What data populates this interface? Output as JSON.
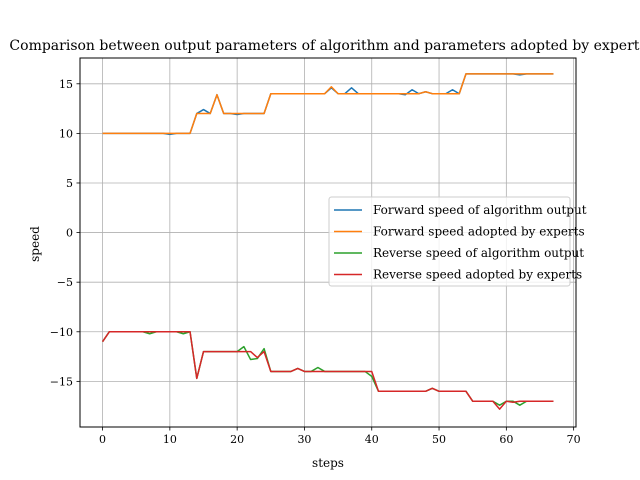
{
  "chart_data": {
    "type": "line",
    "title": "Comparison between output parameters of algorithm and parameters adopted by experts",
    "xlabel": "steps",
    "ylabel": "speed",
    "xlim": [
      -3.35,
      70.35
    ],
    "ylim": [
      -19.6,
      17.6
    ],
    "xticks": [
      0,
      10,
      20,
      30,
      40,
      50,
      60,
      70
    ],
    "yticks": [
      15,
      10,
      5,
      0,
      -5,
      -10,
      -15
    ],
    "ytick_labels": [
      "15",
      "10",
      "5",
      "0",
      "−5",
      "−10",
      "−15"
    ],
    "grid": true,
    "legend_position": "center-right",
    "series": [
      {
        "name": "Forward speed of algorithm output",
        "color": "#1f77b4",
        "values": [
          10,
          10,
          10,
          10,
          10,
          10,
          10,
          10,
          10,
          10,
          9.9,
          10,
          10,
          10,
          12,
          12.4,
          12,
          13.9,
          12,
          12,
          11.9,
          12,
          12,
          12,
          12,
          14,
          14,
          14,
          14,
          14,
          14,
          14,
          14,
          14,
          14.6,
          14,
          14,
          14.6,
          14,
          14,
          14,
          14,
          14,
          14,
          14,
          13.9,
          14.4,
          14,
          14.2,
          14,
          14,
          14,
          14.4,
          14,
          16,
          16,
          16,
          16,
          16,
          16,
          16,
          16,
          15.9,
          16,
          16,
          16,
          16,
          16
        ]
      },
      {
        "name": "Forward speed adopted by experts",
        "color": "#ff7f0e",
        "values": [
          10,
          10,
          10,
          10,
          10,
          10,
          10,
          10,
          10,
          10,
          10,
          10,
          10,
          10,
          12,
          12,
          12,
          13.9,
          12,
          12,
          12,
          12,
          12,
          12,
          12,
          14,
          14,
          14,
          14,
          14,
          14,
          14,
          14,
          14,
          14.7,
          14,
          14,
          14,
          14,
          14,
          14,
          14,
          14,
          14,
          14,
          14,
          14,
          14,
          14.2,
          14,
          14,
          14,
          14,
          14,
          16,
          16,
          16,
          16,
          16,
          16,
          16,
          16,
          16,
          16,
          16,
          16,
          16,
          16
        ]
      },
      {
        "name": "Reverse speed of algorithm output",
        "color": "#2ca02c",
        "values": [
          -11,
          -10,
          -10,
          -10,
          -10,
          -10,
          -10,
          -10.2,
          -10,
          -10,
          -10,
          -10,
          -10.2,
          -10,
          -14.7,
          -12,
          -12,
          -12,
          -12,
          -12,
          -12,
          -11.5,
          -12.8,
          -12.7,
          -11.7,
          -14,
          -14,
          -14,
          -14,
          -13.7,
          -14,
          -14,
          -13.6,
          -14,
          -14,
          -14,
          -14,
          -14,
          -14,
          -14,
          -14.5,
          -16,
          -16,
          -16,
          -16,
          -16,
          -16,
          -16,
          -16,
          -15.7,
          -16,
          -16,
          -16,
          -16,
          -16,
          -17,
          -17,
          -17,
          -17,
          -17.4,
          -17,
          -17,
          -17.4,
          -17,
          -17,
          -17,
          -17,
          -17
        ]
      },
      {
        "name": "Reverse speed adopted by experts",
        "color": "#d62728",
        "values": [
          -11,
          -10,
          -10,
          -10,
          -10,
          -10,
          -10,
          -10,
          -10,
          -10,
          -10,
          -10,
          -10,
          -10,
          -14.7,
          -12,
          -12,
          -12,
          -12,
          -12,
          -12,
          -12,
          -12,
          -12.6,
          -12,
          -14,
          -14,
          -14,
          -14,
          -13.7,
          -14,
          -14,
          -14,
          -14,
          -14,
          -14,
          -14,
          -14,
          -14,
          -14,
          -14,
          -16,
          -16,
          -16,
          -16,
          -16,
          -16,
          -16,
          -16,
          -15.7,
          -16,
          -16,
          -16,
          -16,
          -16,
          -17,
          -17,
          -17,
          -17,
          -17.8,
          -17,
          -17.1,
          -17,
          -17,
          -17,
          -17,
          -17,
          -17
        ]
      }
    ]
  }
}
